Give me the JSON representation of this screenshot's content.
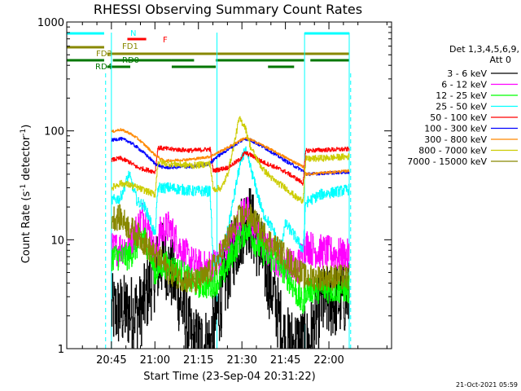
{
  "chart_data": {
    "type": "line",
    "title": "RHESSI Observing Summary Count Rates",
    "xlabel": "Start Time (23-Sep-04 20:31:22)",
    "ylabel_main": "Count Rate (s",
    "ylabel_sup1": "-1",
    "ylabel_mid": " detector",
    "ylabel_sup2": "-1",
    "ylabel_end": ")",
    "yscale": "log",
    "ylim": [
      1,
      1000
    ],
    "y_ticks": [
      "1",
      "10",
      "100",
      "1000"
    ],
    "xlim_minutes": [
      -15.4,
      96.6
    ],
    "x_ticks": [
      "20:45",
      "21:00",
      "21:15",
      "21:30",
      "21:45",
      "22:00"
    ],
    "date_stamp": "21-Oct-2021 05:59",
    "legend_header": [
      "Det 1,3,4,5,6,9,",
      "Att 0"
    ],
    "series": [
      {
        "name": "3 - 6 keV",
        "color": "#000000",
        "base": [
          [
            0,
            2.2
          ],
          [
            10,
            2.2
          ],
          [
            15,
            5
          ],
          [
            18,
            7
          ],
          [
            22,
            4
          ],
          [
            28,
            1.1
          ],
          [
            34,
            1.1
          ],
          [
            38,
            3
          ],
          [
            42,
            8
          ],
          [
            47,
            17
          ],
          [
            50,
            10
          ],
          [
            56,
            3
          ],
          [
            60,
            1.1
          ],
          [
            68,
            1.1
          ],
          [
            72,
            2.5
          ],
          [
            82,
            3
          ]
        ]
      },
      {
        "name": "6 - 12 keV",
        "color": "#ff00ff",
        "base": [
          [
            0,
            8
          ],
          [
            6,
            9
          ],
          [
            9,
            13
          ],
          [
            11,
            17
          ],
          [
            13,
            12
          ],
          [
            15,
            7
          ],
          [
            17,
            12
          ],
          [
            20,
            13
          ],
          [
            24,
            8
          ],
          [
            28,
            6
          ],
          [
            32,
            5.5
          ],
          [
            36,
            6
          ],
          [
            40,
            9
          ],
          [
            44,
            14
          ],
          [
            46,
            20
          ],
          [
            48,
            15
          ],
          [
            52,
            9
          ],
          [
            56,
            7
          ],
          [
            60,
            6
          ],
          [
            64,
            5.5
          ],
          [
            67,
            9
          ],
          [
            70,
            8
          ],
          [
            82,
            7
          ]
        ]
      },
      {
        "name": "12 - 25 keV",
        "color": "#00ff00",
        "base": [
          [
            0,
            7
          ],
          [
            6,
            7
          ],
          [
            9,
            9
          ],
          [
            11,
            11
          ],
          [
            13,
            8
          ],
          [
            15,
            5
          ],
          [
            18,
            6
          ],
          [
            24,
            5
          ],
          [
            28,
            4
          ],
          [
            34,
            3.8
          ],
          [
            38,
            4.5
          ],
          [
            40,
            6
          ],
          [
            44,
            10
          ],
          [
            47,
            13
          ],
          [
            50,
            9
          ],
          [
            54,
            7
          ],
          [
            58,
            6
          ],
          [
            62,
            4
          ],
          [
            66,
            2.5
          ],
          [
            67,
            3.5
          ],
          [
            82,
            3.5
          ]
        ]
      },
      {
        "name": "25 - 50 keV",
        "color": "#00ffff",
        "base": [
          [
            0,
            23
          ],
          [
            3,
            24
          ],
          [
            6,
            40
          ],
          [
            9,
            22
          ],
          [
            11,
            21
          ],
          [
            13,
            16
          ],
          [
            15,
            11
          ],
          [
            16,
            30
          ],
          [
            20,
            30
          ],
          [
            28,
            28
          ],
          [
            34,
            28
          ],
          [
            35,
            6
          ],
          [
            38,
            7
          ],
          [
            40,
            12
          ],
          [
            44,
            45
          ],
          [
            46,
            68
          ],
          [
            48,
            45
          ],
          [
            52,
            18
          ],
          [
            56,
            12
          ],
          [
            58,
            8
          ],
          [
            60,
            14
          ],
          [
            62,
            12
          ],
          [
            64,
            10
          ],
          [
            66,
            8
          ],
          [
            67,
            22
          ],
          [
            72,
            26
          ],
          [
            82,
            29
          ]
        ]
      },
      {
        "name": "50 - 100 keV",
        "color": "#ff0000",
        "base": [
          [
            0,
            54
          ],
          [
            3,
            56
          ],
          [
            6,
            52
          ],
          [
            9,
            46
          ],
          [
            12,
            44
          ],
          [
            15,
            42
          ],
          [
            16,
            70
          ],
          [
            20,
            68
          ],
          [
            28,
            66
          ],
          [
            34,
            68
          ],
          [
            35,
            43
          ],
          [
            40,
            46
          ],
          [
            44,
            54
          ],
          [
            46,
            63
          ],
          [
            48,
            60
          ],
          [
            52,
            52
          ],
          [
            56,
            47
          ],
          [
            60,
            42
          ],
          [
            64,
            36
          ],
          [
            66,
            33
          ],
          [
            67,
            66
          ],
          [
            82,
            68
          ]
        ]
      },
      {
        "name": "100 - 300 keV",
        "color": "#0000ff",
        "base": [
          [
            0,
            82
          ],
          [
            3,
            85
          ],
          [
            6,
            80
          ],
          [
            9,
            70
          ],
          [
            12,
            60
          ],
          [
            15,
            50
          ],
          [
            18,
            46
          ],
          [
            28,
            47
          ],
          [
            34,
            50
          ],
          [
            36,
            57
          ],
          [
            40,
            67
          ],
          [
            44,
            79
          ],
          [
            46,
            85
          ],
          [
            48,
            82
          ],
          [
            52,
            72
          ],
          [
            56,
            62
          ],
          [
            60,
            53
          ],
          [
            64,
            46
          ],
          [
            66,
            43
          ],
          [
            67,
            40
          ],
          [
            82,
            42
          ]
        ]
      },
      {
        "name": "300 - 800 keV",
        "color": "#ff8800",
        "base": [
          [
            0,
            98
          ],
          [
            3,
            103
          ],
          [
            6,
            96
          ],
          [
            9,
            85
          ],
          [
            12,
            72
          ],
          [
            15,
            60
          ],
          [
            18,
            53
          ],
          [
            28,
            55
          ],
          [
            34,
            58
          ],
          [
            36,
            62
          ],
          [
            40,
            70
          ],
          [
            44,
            81
          ],
          [
            46,
            86
          ],
          [
            48,
            83
          ],
          [
            52,
            74
          ],
          [
            56,
            65
          ],
          [
            60,
            57
          ],
          [
            64,
            50
          ],
          [
            66,
            47
          ],
          [
            67,
            40
          ],
          [
            82,
            43
          ]
        ]
      },
      {
        "name": "800 - 7000 keV",
        "color": "#cccc00",
        "base": [
          [
            0,
            30
          ],
          [
            3,
            33
          ],
          [
            6,
            32
          ],
          [
            9,
            30
          ],
          [
            12,
            28
          ],
          [
            15,
            26
          ],
          [
            16,
            52
          ],
          [
            20,
            50
          ],
          [
            28,
            48
          ],
          [
            34,
            50
          ],
          [
            35,
            29
          ],
          [
            38,
            30
          ],
          [
            40,
            40
          ],
          [
            42,
            70
          ],
          [
            44,
            130
          ],
          [
            46,
            110
          ],
          [
            48,
            70
          ],
          [
            52,
            45
          ],
          [
            56,
            35
          ],
          [
            60,
            30
          ],
          [
            64,
            24
          ],
          [
            66,
            23
          ],
          [
            67,
            55
          ],
          [
            82,
            58
          ]
        ]
      },
      {
        "name": "7000 - 15000 keV",
        "color": "#888800",
        "base": [
          [
            0,
            16
          ],
          [
            3,
            16
          ],
          [
            6,
            13
          ],
          [
            9,
            11
          ],
          [
            12,
            9
          ],
          [
            15,
            7
          ],
          [
            17,
            6.5
          ],
          [
            20,
            5
          ],
          [
            24,
            4.5
          ],
          [
            28,
            4
          ],
          [
            32,
            4.5
          ],
          [
            36,
            6
          ],
          [
            40,
            10
          ],
          [
            44,
            16
          ],
          [
            47,
            17
          ],
          [
            50,
            14
          ],
          [
            54,
            10
          ],
          [
            58,
            8
          ],
          [
            62,
            6
          ],
          [
            65,
            5
          ],
          [
            67,
            4.5
          ],
          [
            82,
            4.5
          ]
        ]
      }
    ],
    "attenuator_intervals_min": [
      [
        0,
        36.4
      ],
      [
        66.6,
        82
      ]
    ],
    "bars": [
      {
        "label": "N",
        "color": "#00ffff",
        "level": "top",
        "segments": [
          [
            -15.4,
            -2.5
          ],
          [
            66.6,
            82
          ]
        ]
      },
      {
        "label": "F",
        "color": "#ff0000",
        "level": "flare",
        "segments": [
          [
            5.5,
            12
          ]
        ]
      },
      {
        "label": "FD1",
        "color": "#888800",
        "level": "fd1",
        "segments": [
          [
            -15.4,
            -2.5
          ]
        ]
      },
      {
        "label": "FD2",
        "color": "#888800",
        "level": "fd2",
        "segments": [
          [
            -1.5,
            82
          ]
        ]
      },
      {
        "label": "RD0",
        "color": "#007700",
        "level": "rd0",
        "segments": [
          [
            -15.4,
            -2.5
          ],
          [
            0.5,
            20.8
          ],
          [
            20.8,
            28.5
          ],
          [
            36,
            66.4
          ],
          [
            68.6,
            82
          ]
        ]
      },
      {
        "label": "RD4",
        "color": "#007700",
        "level": "rd4",
        "segments": [
          [
            -1.5,
            6.5
          ],
          [
            20.8,
            36
          ],
          [
            54,
            63
          ]
        ]
      }
    ],
    "eclipse_lines_min": [
      -2.0,
      82.5
    ]
  }
}
